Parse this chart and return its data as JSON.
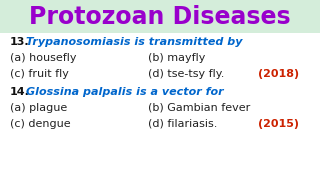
{
  "title": "Protozoan Diseases",
  "title_color": "#9900cc",
  "title_bg": "#d4edda",
  "bg_color": "#ffffff",
  "q13_num": "13.",
  "q13_text": "Trypanosomiasis is transmitted by",
  "q13_color": "#0066cc",
  "q13_a": "(a) housefly",
  "q13_b": "(b) mayfly",
  "q13_c": "(c) fruit fly",
  "q13_d": "(d) tse-tsy fly.",
  "q13_year": "(2018)",
  "q14_num": "14.",
  "q14_text": "Glossina palpalis is a vector for",
  "q14_color": "#0066cc",
  "q14_a": "(a) plague",
  "q14_b": "(b) Gambian fever",
  "q14_c": "(c) dengue",
  "q14_d": "(d) filariasis.",
  "q14_year": "(2015)",
  "year_color": "#cc2200",
  "answer_color": "#222222",
  "num_color": "#111111",
  "title_fontsize": 17,
  "body_fontsize": 8.0
}
